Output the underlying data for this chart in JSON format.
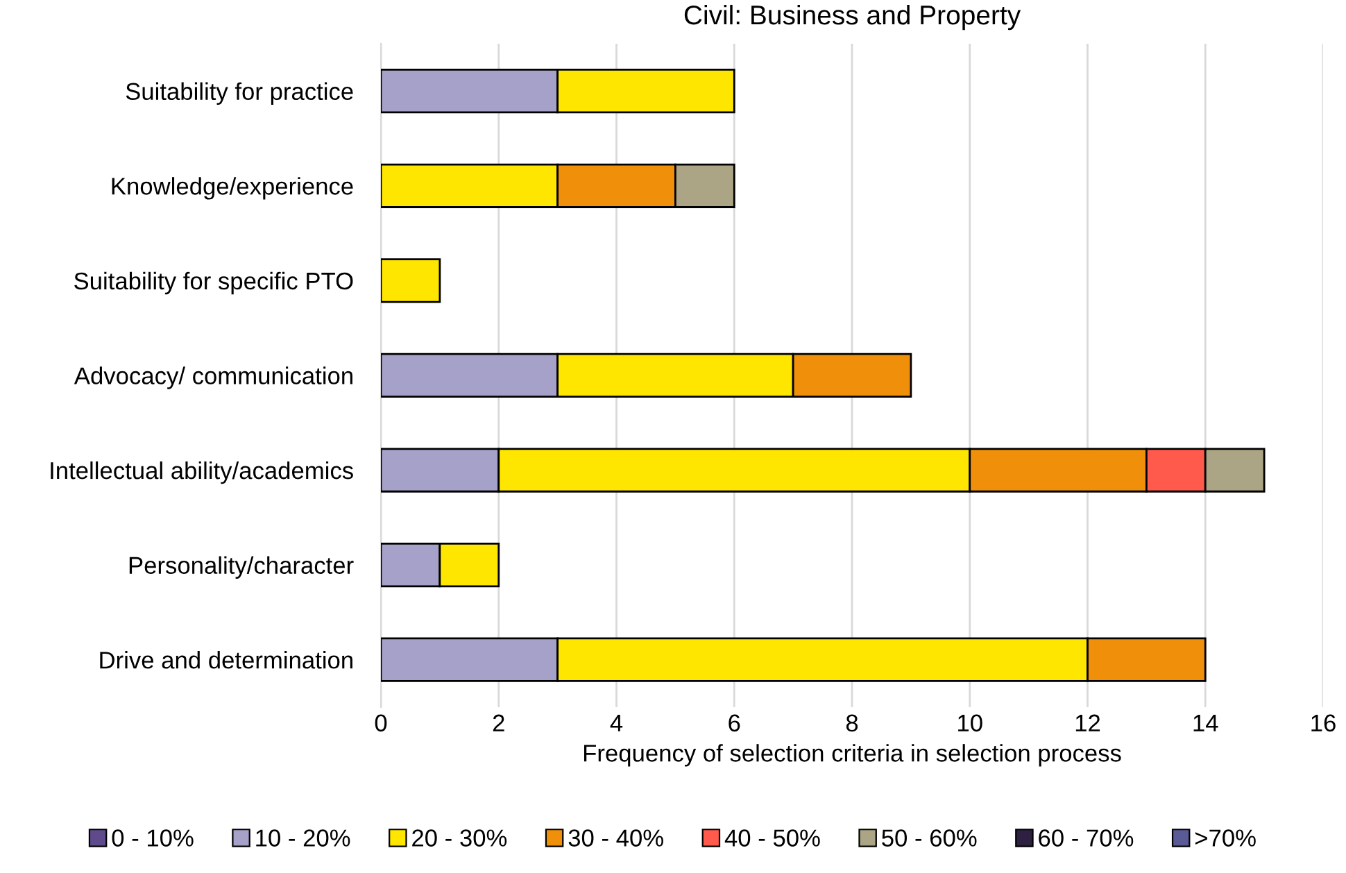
{
  "chart_data": {
    "type": "bar",
    "orientation": "horizontal",
    "stacked": true,
    "title": "Civil: Business and Property",
    "xlabel": "Frequency of selection criteria in selection process",
    "categories": [
      "Suitability for practice",
      "Knowledge/experience",
      "Suitability for specific PTO",
      "Advocacy/ communication",
      "Intellectual ability/academics",
      "Personality/character",
      "Drive and determination"
    ],
    "series": [
      {
        "name": "0 - 10%",
        "color": "#5f4b8b",
        "values": [
          0,
          0,
          0,
          0,
          0,
          0,
          0
        ]
      },
      {
        "name": "10 - 20%",
        "color": "#a5a1c8",
        "values": [
          3,
          0,
          0,
          3,
          2,
          1,
          3
        ]
      },
      {
        "name": "20 - 30%",
        "color": "#ffe600",
        "values": [
          3,
          3,
          1,
          4,
          8,
          1,
          9
        ]
      },
      {
        "name": "30 - 40%",
        "color": "#f0900a",
        "values": [
          0,
          2,
          0,
          2,
          3,
          0,
          2
        ]
      },
      {
        "name": "40 - 50%",
        "color": "#ff5a4b",
        "values": [
          0,
          0,
          0,
          0,
          1,
          0,
          0
        ]
      },
      {
        "name": "50 - 60%",
        "color": "#aba585",
        "values": [
          0,
          1,
          0,
          0,
          1,
          0,
          0
        ]
      },
      {
        "name": "60 - 70%",
        "color": "#2d2040",
        "values": [
          0,
          0,
          0,
          0,
          0,
          0,
          0
        ]
      },
      {
        "name": ">70%",
        "color": "#5a5a96",
        "values": [
          0,
          0,
          0,
          0,
          0,
          0,
          0
        ]
      }
    ],
    "xlim": [
      0,
      16
    ],
    "xticks": [
      0,
      2,
      4,
      6,
      8,
      10,
      12,
      14,
      16
    ],
    "grid": "x",
    "legend": "bottom"
  }
}
